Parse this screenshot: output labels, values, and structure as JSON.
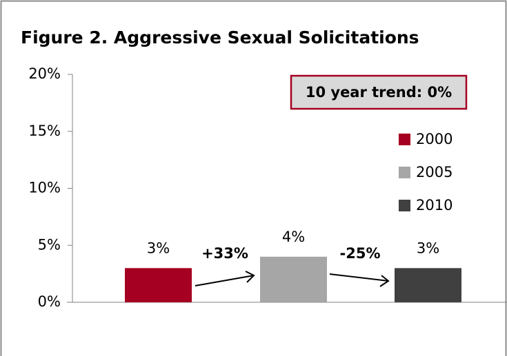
{
  "chart_data": {
    "type": "bar",
    "title": "Figure 2. Aggressive Sexual Solicitations",
    "categories": [
      null
    ],
    "series": [
      {
        "name": "2000",
        "color": "#a50021",
        "values": [
          3
        ],
        "value_labels": [
          "3%"
        ]
      },
      {
        "name": "2005",
        "color": "#a6a6a6",
        "values": [
          4
        ],
        "value_labels": [
          "4%"
        ]
      },
      {
        "name": "2010",
        "color": "#404040",
        "values": [
          3
        ],
        "value_labels": [
          "3%"
        ]
      }
    ],
    "ylim": [
      0,
      20
    ],
    "yticks": [
      {
        "value": 0,
        "label": "0%"
      },
      {
        "value": 5,
        "label": "5%"
      },
      {
        "value": 10,
        "label": "10%"
      },
      {
        "value": 15,
        "label": "15%"
      },
      {
        "value": 20,
        "label": "20%"
      }
    ],
    "grid": false,
    "legend": "right",
    "annotations": [
      "10 year trend: 0%",
      "+33%",
      "-25%"
    ]
  }
}
